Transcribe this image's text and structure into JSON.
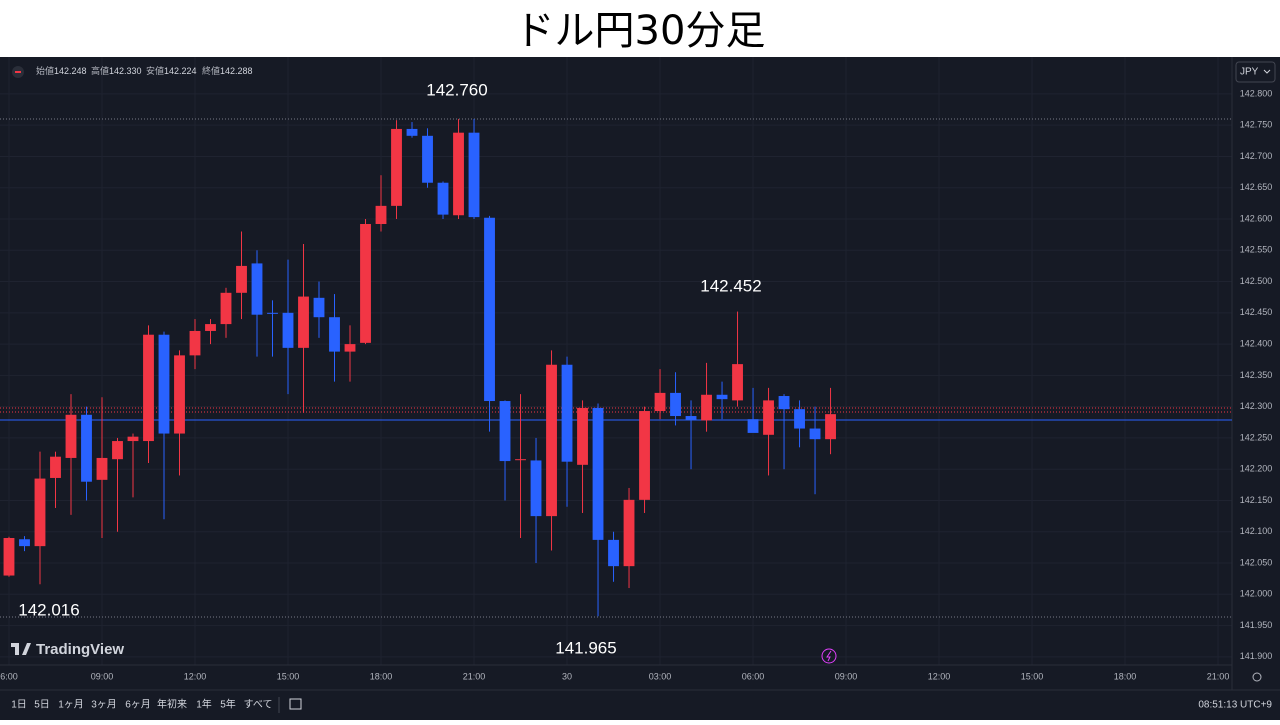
{
  "chart_data": {
    "type": "candlestick",
    "title": "ドル円30分足",
    "legend_items": [
      {
        "label": "始値",
        "value": "142.248"
      },
      {
        "label": "高値",
        "value": "142.330"
      },
      {
        "label": "安値",
        "value": "142.224"
      },
      {
        "label": "終値",
        "value": "142.288"
      }
    ],
    "currency": "JPY",
    "up_color": "#f23645",
    "down_color": "#2962ff",
    "grid": true,
    "open": [
      142.03,
      142.088,
      142.077,
      142.186,
      142.218,
      142.287,
      142.183,
      142.216,
      142.245,
      142.245,
      142.415,
      142.257,
      142.382,
      142.421,
      142.432,
      142.482,
      142.529,
      142.45,
      142.45,
      142.394,
      142.474,
      142.443,
      142.388,
      142.402,
      142.592,
      142.621,
      142.744,
      142.733,
      142.658,
      142.606,
      142.738,
      142.602,
      142.309,
      142.215,
      142.214,
      142.125,
      142.367,
      142.207,
      142.298,
      142.087,
      142.045,
      142.151,
      142.293,
      142.322,
      142.285,
      142.278,
      142.319,
      142.31,
      142.28,
      142.255,
      142.317,
      142.296,
      142.265,
      142.248
    ],
    "high": [
      142.092,
      142.093,
      142.228,
      142.228,
      142.32,
      142.3,
      142.315,
      142.25,
      142.257,
      142.43,
      142.42,
      142.39,
      142.44,
      142.44,
      142.49,
      142.58,
      142.55,
      142.47,
      142.535,
      142.56,
      142.5,
      142.48,
      142.43,
      142.6,
      142.67,
      142.758,
      142.755,
      142.745,
      142.66,
      142.76,
      142.76,
      142.605,
      142.31,
      142.32,
      142.25,
      142.39,
      142.38,
      142.31,
      142.305,
      142.1,
      142.17,
      142.3,
      142.36,
      142.355,
      142.31,
      142.37,
      142.34,
      142.452,
      142.33,
      142.33,
      142.32,
      142.31,
      142.3,
      142.33
    ],
    "low": [
      142.028,
      142.069,
      142.016,
      142.138,
      142.127,
      142.15,
      142.09,
      142.1,
      142.155,
      142.21,
      142.12,
      142.19,
      142.36,
      142.4,
      142.41,
      142.44,
      142.38,
      142.38,
      142.32,
      142.29,
      142.41,
      142.34,
      142.34,
      142.4,
      142.58,
      142.6,
      142.73,
      142.65,
      142.6,
      142.6,
      142.6,
      142.26,
      142.15,
      142.09,
      142.05,
      142.07,
      142.14,
      142.13,
      141.965,
      142.02,
      142.01,
      142.13,
      142.28,
      142.27,
      142.2,
      142.26,
      142.28,
      142.3,
      142.26,
      142.19,
      142.2,
      142.235,
      142.16,
      142.224
    ],
    "close": [
      142.09,
      142.077,
      142.185,
      142.22,
      142.287,
      142.18,
      142.218,
      142.245,
      142.252,
      142.415,
      142.257,
      142.382,
      142.421,
      142.432,
      142.482,
      142.525,
      142.447,
      142.449,
      142.394,
      142.476,
      142.443,
      142.388,
      142.4,
      142.592,
      142.621,
      142.744,
      142.733,
      142.658,
      142.607,
      142.738,
      142.603,
      142.309,
      142.213,
      142.216,
      142.125,
      142.367,
      142.212,
      142.298,
      142.087,
      142.045,
      142.151,
      142.293,
      142.322,
      142.285,
      142.279,
      142.319,
      142.312,
      142.368,
      142.258,
      142.31,
      142.296,
      142.265,
      142.248,
      142.288
    ],
    "xlim": [
      -0.58,
      78.77
    ],
    "xticks": [
      {
        "value": 0,
        "label": "6:00"
      },
      {
        "value": 6,
        "label": "09:00"
      },
      {
        "value": 12,
        "label": "12:00"
      },
      {
        "value": 18,
        "label": "15:00"
      },
      {
        "value": 24,
        "label": "18:00"
      },
      {
        "value": 30,
        "label": "21:00"
      },
      {
        "value": 36,
        "label": "30"
      },
      {
        "value": 42,
        "label": "03:00"
      },
      {
        "value": 48,
        "label": "06:00"
      },
      {
        "value": 54,
        "label": "09:00"
      },
      {
        "value": 60,
        "label": "12:00"
      },
      {
        "value": 66,
        "label": "15:00"
      },
      {
        "value": 72,
        "label": "18:00"
      },
      {
        "value": 78,
        "label": "21:00"
      }
    ],
    "ylim": [
      141.847,
      142.859
    ],
    "yticks": [
      {
        "value": 141.9,
        "label": "141.900"
      },
      {
        "value": 141.95,
        "label": "141.950"
      },
      {
        "value": 142.0,
        "label": "142.000"
      },
      {
        "value": 142.05,
        "label": "142.050"
      },
      {
        "value": 142.1,
        "label": "142.100"
      },
      {
        "value": 142.15,
        "label": "142.150"
      },
      {
        "value": 142.2,
        "label": "142.200"
      },
      {
        "value": 142.25,
        "label": "142.250"
      },
      {
        "value": 142.3,
        "label": "142.300"
      },
      {
        "value": 142.35,
        "label": "142.350"
      },
      {
        "value": 142.4,
        "label": "142.400"
      },
      {
        "value": 142.45,
        "label": "142.450"
      },
      {
        "value": 142.5,
        "label": "142.500"
      },
      {
        "value": 142.55,
        "label": "142.550"
      },
      {
        "value": 142.6,
        "label": "142.600"
      },
      {
        "value": 142.65,
        "label": "142.650"
      },
      {
        "value": 142.7,
        "label": "142.700"
      },
      {
        "value": 142.75,
        "label": "142.750"
      },
      {
        "value": 142.8,
        "label": "142.800"
      }
    ],
    "annotations": [
      "142.760",
      "142.452",
      "142.016",
      "141.965"
    ],
    "logo": "TradingView"
  },
  "toolbar": {
    "ranges": [
      "1日",
      "5日",
      "1ヶ月",
      "3ヶ月",
      "6ヶ月",
      "年初来",
      "1年",
      "5年",
      "すべて"
    ],
    "clock": "08:51:13 UTC+9"
  }
}
